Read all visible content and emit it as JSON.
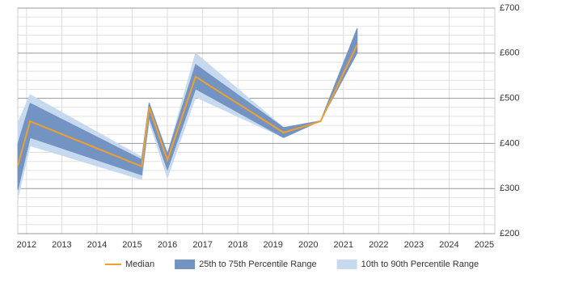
{
  "chart_data": {
    "type": "line",
    "x": [
      2011.75,
      2012.1,
      2015.27,
      2015.48,
      2016.0,
      2016.8,
      2019.3,
      2020.35,
      2021.39
    ],
    "xlim": [
      2011.75,
      2025.3
    ],
    "xticks": [
      2012,
      2013,
      2014,
      2015,
      2016,
      2017,
      2018,
      2019,
      2020,
      2021,
      2022,
      2023,
      2024,
      2025
    ],
    "ylim": [
      200,
      700
    ],
    "yticks": [
      {
        "value": 200,
        "label": "£200"
      },
      {
        "value": 300,
        "label": "£300"
      },
      {
        "value": 400,
        "label": "£400"
      },
      {
        "value": 500,
        "label": "£500"
      },
      {
        "value": 600,
        "label": "£600"
      },
      {
        "value": 700,
        "label": "£700"
      }
    ],
    "grid": true,
    "legend": "bottom",
    "bands": [
      {
        "name": "10th to 90th Percentile Range",
        "color": "#c6d9ee",
        "low": [
          279,
          395,
          320,
          449,
          324,
          503,
          413,
          450,
          601
        ],
        "high": [
          445,
          508,
          370,
          490,
          377,
          600,
          435,
          450,
          655
        ]
      },
      {
        "name": "25th to 75th Percentile Range",
        "color": "#7393c3",
        "low": [
          297,
          413,
          330,
          458,
          342,
          521,
          413,
          450,
          601
        ],
        "high": [
          399,
          489,
          364,
          490,
          377,
          575,
          435,
          450,
          655
        ]
      }
    ],
    "series": [
      {
        "name": "Median",
        "color": "#f0a02a",
        "values": [
          351,
          449,
          349,
          480,
          363,
          548,
          424,
          449,
          619
        ]
      }
    ]
  }
}
